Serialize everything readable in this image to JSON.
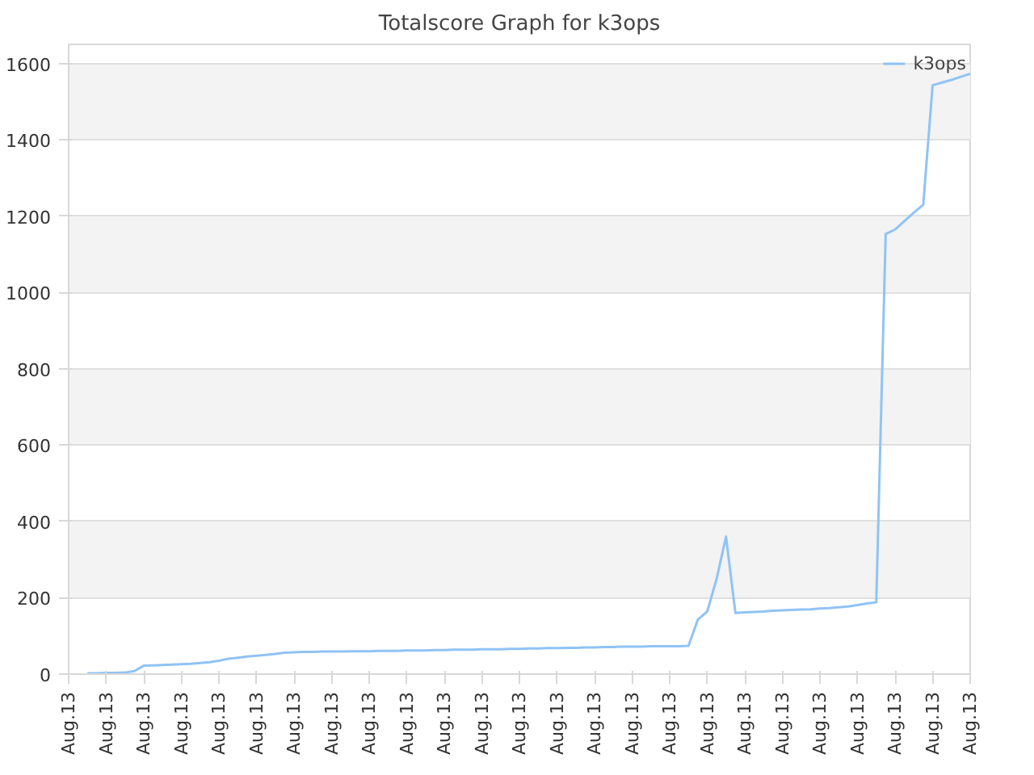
{
  "chart_data": {
    "type": "line",
    "title": "Totalscore Graph for k3ops",
    "categories": [
      "Aug.13",
      null,
      null,
      null,
      "Aug.13",
      null,
      null,
      null,
      "Aug.13",
      null,
      null,
      null,
      "Aug.13",
      null,
      null,
      null,
      "Aug.13",
      null,
      null,
      null,
      "Aug.13",
      null,
      null,
      null,
      "Aug.13",
      null,
      null,
      null,
      "Aug.13",
      null,
      null,
      null,
      "Aug.13",
      null,
      null,
      null,
      "Aug.13",
      null,
      null,
      null,
      "Aug.13",
      null,
      null,
      null,
      "Aug.13",
      null,
      null,
      null,
      "Aug.13",
      null,
      null,
      null,
      "Aug.13",
      null,
      null,
      null,
      "Aug.13",
      null,
      null,
      null,
      "Aug.13",
      null,
      null,
      null,
      "Aug.13",
      null,
      null,
      null,
      "Aug.13",
      null,
      null,
      null,
      "Aug.13",
      null,
      null,
      null,
      "Aug.13",
      null,
      null,
      null,
      "Aug.13",
      null,
      null,
      null,
      "Aug.13",
      null,
      null,
      null,
      "Aug.13",
      null,
      null,
      null,
      "Aug.13",
      null,
      null,
      null,
      "Aug.13"
    ],
    "ylim": [
      0,
      1650
    ],
    "yticks": [
      0,
      200,
      400,
      600,
      800,
      1000,
      1200,
      1400,
      1600
    ],
    "grid": "y",
    "legend": "top right",
    "marker": "none",
    "line_style": "solid",
    "series": [
      {
        "name": "k3ops",
        "color": "#90c3f5",
        "values": [
          null,
          null,
          2,
          2,
          3,
          3,
          4,
          8,
          22,
          23,
          24,
          25,
          26,
          27,
          29,
          31,
          35,
          40,
          43,
          46,
          48,
          50,
          53,
          56,
          57,
          58,
          58,
          59,
          59,
          59,
          60,
          60,
          60,
          61,
          61,
          61,
          62,
          62,
          62,
          63,
          63,
          64,
          64,
          64,
          65,
          65,
          65,
          66,
          66,
          67,
          67,
          68,
          68,
          69,
          69,
          70,
          70,
          71,
          71,
          72,
          72,
          72,
          73,
          73,
          73,
          73,
          74,
          143,
          164,
          250,
          360,
          160,
          162,
          163,
          164,
          166,
          167,
          168,
          169,
          170,
          172,
          173,
          175,
          177,
          181,
          185,
          188,
          1153,
          1165,
          1187,
          1209,
          1230,
          1543,
          1550,
          1557,
          1565,
          1573
        ]
      }
    ]
  }
}
